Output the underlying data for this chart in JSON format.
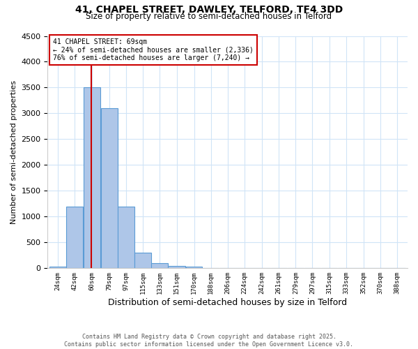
{
  "title_line1": "41, CHAPEL STREET, DAWLEY, TELFORD, TF4 3DD",
  "title_line2": "Size of property relative to semi-detached houses in Telford",
  "xlabel": "Distribution of semi-detached houses by size in Telford",
  "ylabel": "Number of semi-detached properties",
  "bins": [
    "24sqm",
    "42sqm",
    "60sqm",
    "79sqm",
    "97sqm",
    "115sqm",
    "133sqm",
    "151sqm",
    "170sqm",
    "188sqm",
    "206sqm",
    "224sqm",
    "242sqm",
    "261sqm",
    "279sqm",
    "297sqm",
    "315sqm",
    "333sqm",
    "352sqm",
    "370sqm",
    "388sqm"
  ],
  "bin_left_edges": [
    24,
    42,
    60,
    79,
    97,
    115,
    133,
    151,
    170,
    188,
    206,
    224,
    242,
    261,
    279,
    297,
    315,
    333,
    352,
    370,
    388
  ],
  "bin_widths": [
    18,
    18,
    19,
    18,
    18,
    18,
    18,
    19,
    18,
    18,
    18,
    18,
    19,
    18,
    18,
    18,
    18,
    19,
    18,
    18,
    18
  ],
  "values": [
    30,
    1200,
    3500,
    3100,
    1200,
    300,
    100,
    50,
    30,
    10,
    5,
    5,
    5,
    5,
    5,
    5,
    5,
    0,
    0,
    0,
    0
  ],
  "bar_color": "#aec6e8",
  "bar_edge_color": "#5a9bd5",
  "property_sqm": 69,
  "property_label": "41 CHAPEL STREET: 69sqm",
  "smaller_pct": 24,
  "smaller_count": 2336,
  "larger_pct": 76,
  "larger_count": 7240,
  "vline_color": "#cc0000",
  "annotation_box_color": "#cc0000",
  "ylim": [
    0,
    4500
  ],
  "yticks": [
    0,
    500,
    1000,
    1500,
    2000,
    2500,
    3000,
    3500,
    4000,
    4500
  ],
  "background_color": "#ffffff",
  "grid_color": "#d0e4f7",
  "footer_line1": "Contains HM Land Registry data © Crown copyright and database right 2025.",
  "footer_line2": "Contains public sector information licensed under the Open Government Licence v3.0."
}
